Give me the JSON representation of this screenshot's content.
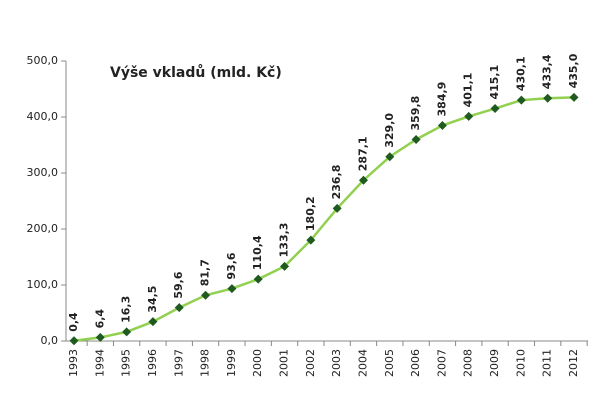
{
  "chart_data": {
    "type": "line",
    "title": "Výše vkladů (mld. Kč)",
    "categories": [
      "1993",
      "1994",
      "1995",
      "1996",
      "1997",
      "1998",
      "1999",
      "2000",
      "2001",
      "2002",
      "2003",
      "2004",
      "2005",
      "2006",
      "2007",
      "2008",
      "2009",
      "2010",
      "2011",
      "2012"
    ],
    "series": [
      {
        "name": "Výše vkladů",
        "color": "#92d050",
        "marker_color": "#1f5a1f",
        "values": [
          0.4,
          6.4,
          16.3,
          34.5,
          59.6,
          81.7,
          93.6,
          110.4,
          133.3,
          180.2,
          236.8,
          287.1,
          329.0,
          359.8,
          384.9,
          401.1,
          415.1,
          430.1,
          433.4,
          435.0
        ],
        "value_labels": [
          "0,4",
          "6,4",
          "16,3",
          "34,5",
          "59,6",
          "81,7",
          "93,6",
          "110,4",
          "133,3",
          "180,2",
          "236,8",
          "287,1",
          "329,0",
          "359,8",
          "384,9",
          "401,1",
          "415,1",
          "430,1",
          "433,4",
          "435,0"
        ]
      }
    ],
    "ylim": [
      0,
      500
    ],
    "yticks": [
      {
        "value": 0,
        "label": "0,0"
      },
      {
        "value": 100,
        "label": "100,0"
      },
      {
        "value": 200,
        "label": "200,0"
      },
      {
        "value": 300,
        "label": "300,0"
      },
      {
        "value": 400,
        "label": "400,0"
      },
      {
        "value": 500,
        "label": "500,0"
      }
    ],
    "grid": false
  }
}
